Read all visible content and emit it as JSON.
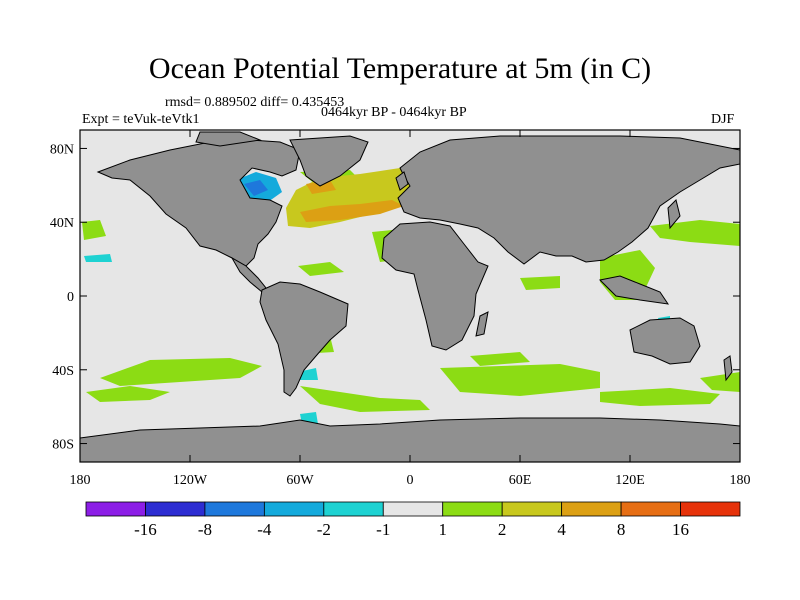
{
  "title": "Ocean Potential Temperature at 5m (in C)",
  "stats": "rmsd= 0.889502 diff= 0.435453",
  "left_label": "Expt = teVuk-teVtk1",
  "center_label": "0464kyr BP - 0464kyr BP",
  "right_label": "DJF",
  "lon_ticks": [
    "180",
    "120W",
    "60W",
    "0",
    "60E",
    "120E",
    "180"
  ],
  "lat_ticks": [
    "80N",
    "40N",
    "0",
    "40S",
    "80S"
  ],
  "colorbar": {
    "colors": [
      "#8c1ee6",
      "#2d2dd2",
      "#1e78dc",
      "#14aadc",
      "#1ed2d2",
      "#e6e6e6",
      "#8cdc14",
      "#c8c81e",
      "#dca014",
      "#e66e14",
      "#e6320a"
    ],
    "labels": [
      "-16",
      "-8",
      "-4",
      "-2",
      "-1",
      "1",
      "2",
      "4",
      "8",
      "16"
    ]
  },
  "colors": {
    "land": "#909090",
    "ocean": "#e6e6e6",
    "coast": "#000000"
  }
}
